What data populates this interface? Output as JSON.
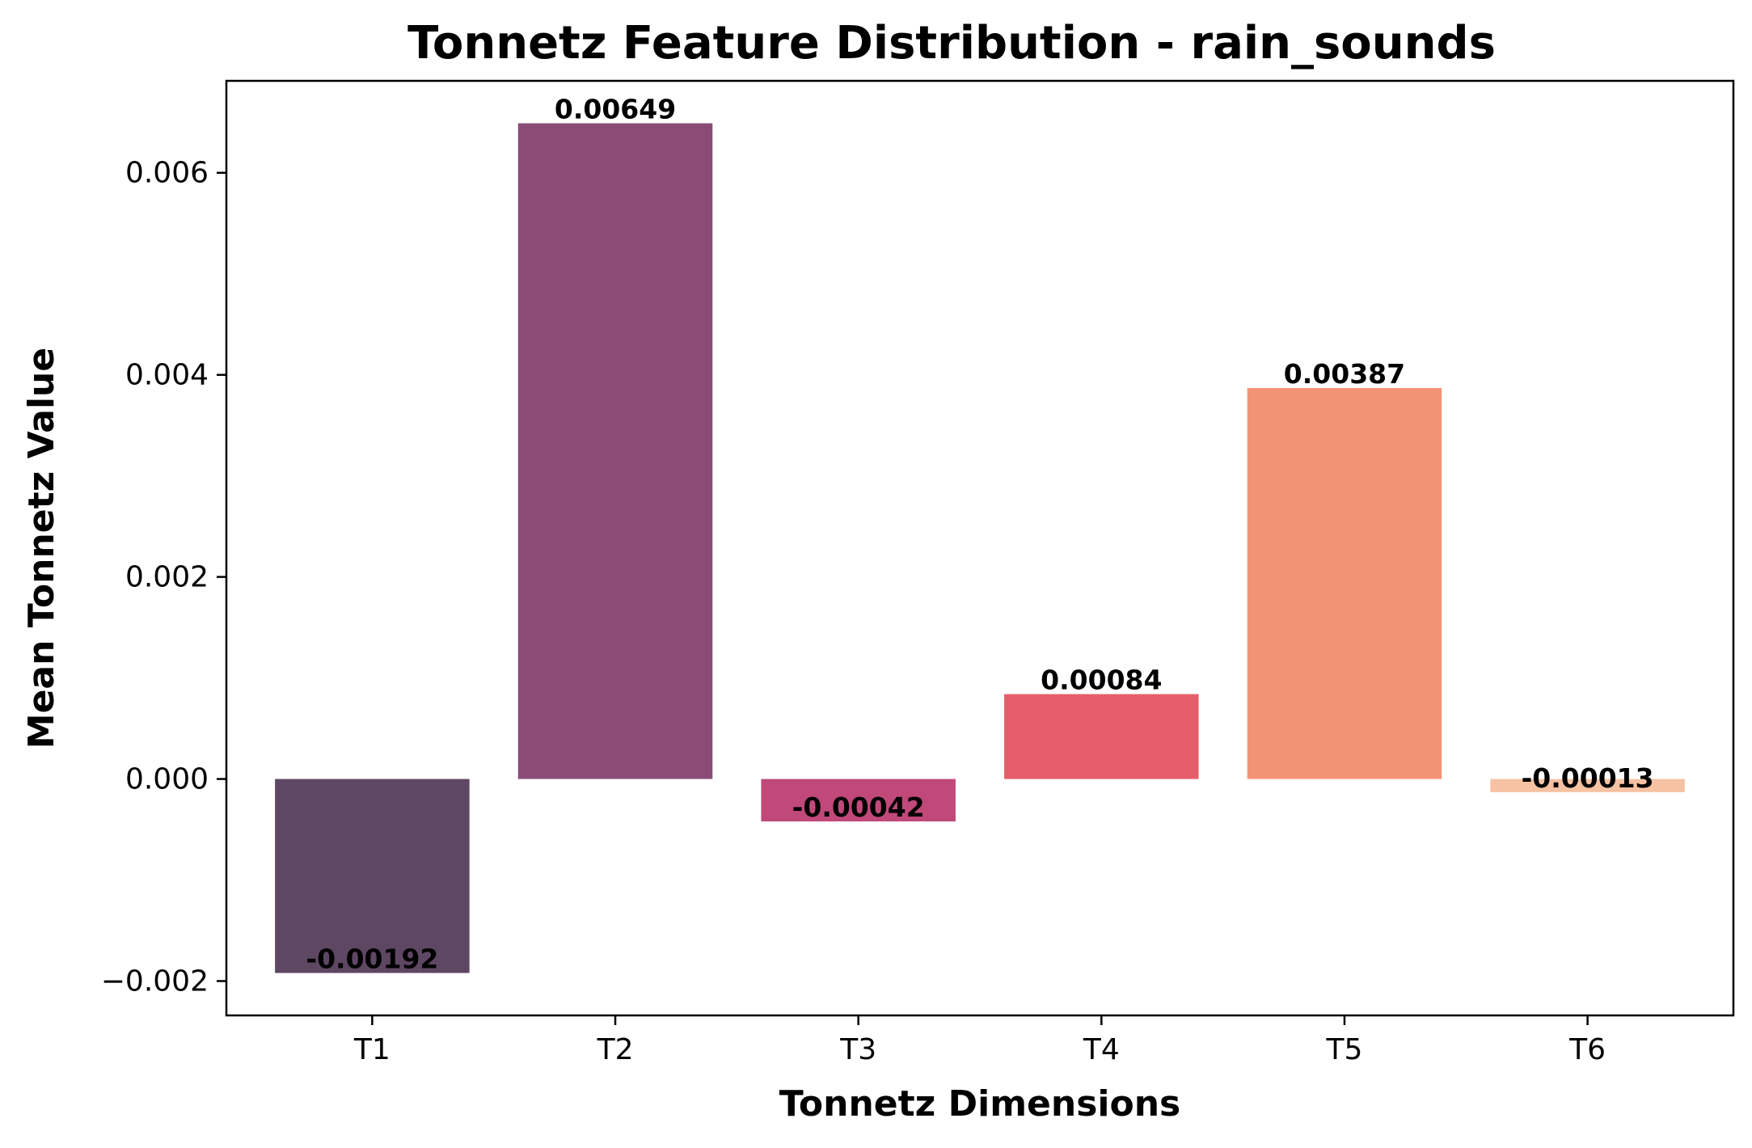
{
  "chart_data": {
    "type": "bar",
    "title": "Tonnetz Feature Distribution - rain_sounds",
    "xlabel": "Tonnetz Dimensions",
    "ylabel": "Mean Tonnetz Value",
    "categories": [
      "T1",
      "T2",
      "T3",
      "T4",
      "T5",
      "T6"
    ],
    "values": [
      -0.00192,
      0.00649,
      -0.00042,
      0.00084,
      0.00387,
      -0.00013
    ],
    "value_labels": [
      "-0.00192",
      "0.00649",
      "-0.00042",
      "0.00084",
      "0.00387",
      "-0.00013"
    ],
    "colors": [
      "#5e4763",
      "#8a4c76",
      "#c0497a",
      "#e65d6a",
      "#f39375",
      "#f6c2a2"
    ],
    "ylim": [
      -0.00234,
      0.00691
    ],
    "yticks": [
      -0.002,
      0.0,
      0.002,
      0.004,
      0.006
    ],
    "ytick_labels": [
      "−0.002",
      "0.000",
      "0.002",
      "0.004",
      "0.006"
    ],
    "grid": false,
    "legend": "none"
  }
}
